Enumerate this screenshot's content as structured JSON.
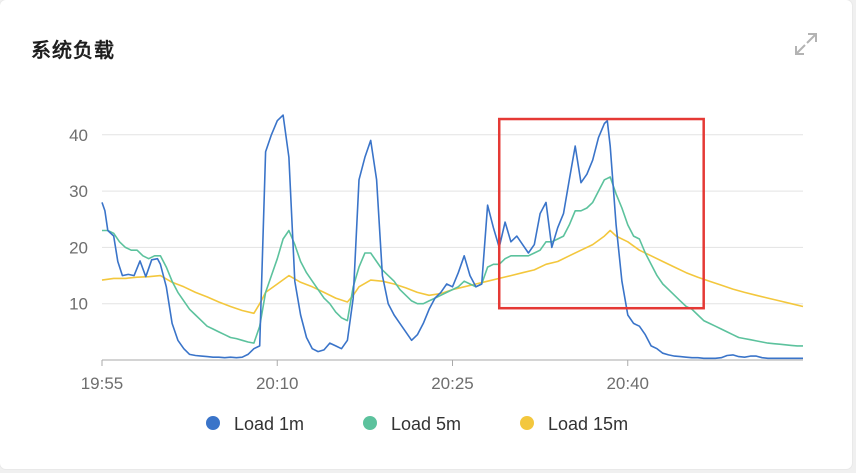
{
  "panel": {
    "title": "系统负载",
    "expand_icon": "expand-arrows-icon"
  },
  "chart_data": {
    "type": "line",
    "title": "系统负载",
    "xlabel": "",
    "ylabel": "",
    "x_ticks": [
      "19:55",
      "20:10",
      "20:25",
      "20:40"
    ],
    "y_ticks": [
      10,
      20,
      30,
      40
    ],
    "xlim": [
      "19:55",
      "21:55"
    ],
    "ylim": [
      0,
      44
    ],
    "grid": true,
    "legend_position": "bottom",
    "x_unit": "minutes since 19:55",
    "series": [
      {
        "name": "Load 1m",
        "color": "#3a74c9",
        "points": [
          [
            0,
            28
          ],
          [
            0.5,
            26.5
          ],
          [
            1,
            23
          ],
          [
            2,
            22
          ],
          [
            2.7,
            17.5
          ],
          [
            3.5,
            15
          ],
          [
            4.5,
            15.2
          ],
          [
            5.5,
            15
          ],
          [
            6.5,
            17.6
          ],
          [
            7.5,
            14.8
          ],
          [
            8.5,
            17.8
          ],
          [
            9.5,
            18
          ],
          [
            10,
            17
          ],
          [
            11,
            13
          ],
          [
            12,
            6.5
          ],
          [
            13,
            3.5
          ],
          [
            14,
            2
          ],
          [
            15,
            1
          ],
          [
            16,
            0.8
          ],
          [
            17,
            0.7
          ],
          [
            18,
            0.6
          ],
          [
            19,
            0.5
          ],
          [
            20,
            0.5
          ],
          [
            21,
            0.4
          ],
          [
            22,
            0.5
          ],
          [
            23,
            0.4
          ],
          [
            24,
            0.5
          ],
          [
            25,
            1
          ],
          [
            26,
            2
          ],
          [
            27,
            2.5
          ],
          [
            28,
            37
          ],
          [
            29,
            40
          ],
          [
            30,
            42.5
          ],
          [
            31,
            43.5
          ],
          [
            32,
            36
          ],
          [
            33,
            14
          ],
          [
            34,
            8
          ],
          [
            35,
            4
          ],
          [
            36,
            2
          ],
          [
            37,
            1.5
          ],
          [
            38,
            1.8
          ],
          [
            39,
            3
          ],
          [
            40,
            2.5
          ],
          [
            41,
            2
          ],
          [
            42,
            3.5
          ],
          [
            43,
            11
          ],
          [
            44,
            32
          ],
          [
            45,
            36
          ],
          [
            46,
            39
          ],
          [
            47,
            32
          ],
          [
            48,
            15
          ],
          [
            49,
            10
          ],
          [
            50,
            8
          ],
          [
            51,
            6.5
          ],
          [
            52,
            5
          ],
          [
            53,
            3.5
          ],
          [
            54,
            4.5
          ],
          [
            55,
            6.5
          ],
          [
            56,
            9
          ],
          [
            57,
            11
          ],
          [
            58,
            12
          ],
          [
            59,
            13.5
          ],
          [
            60,
            13
          ],
          [
            61,
            15.5
          ],
          [
            62,
            18.5
          ],
          [
            63,
            15
          ],
          [
            64,
            13
          ],
          [
            65,
            13.5
          ],
          [
            66,
            27.5
          ],
          [
            67,
            23.5
          ],
          [
            68,
            20
          ],
          [
            69,
            24.5
          ],
          [
            70,
            21
          ],
          [
            71,
            22
          ],
          [
            72,
            20.5
          ],
          [
            73,
            19
          ],
          [
            74,
            20.5
          ],
          [
            75,
            26
          ],
          [
            76,
            28
          ],
          [
            77,
            20
          ],
          [
            78,
            23.5
          ],
          [
            79,
            26
          ],
          [
            80,
            32
          ],
          [
            81,
            38
          ],
          [
            82,
            31.5
          ],
          [
            83,
            33
          ],
          [
            84,
            35.5
          ],
          [
            85,
            39.5
          ],
          [
            86,
            42
          ],
          [
            86.5,
            42.5
          ],
          [
            87,
            38
          ],
          [
            88,
            24
          ],
          [
            89,
            14
          ],
          [
            90,
            8
          ],
          [
            91,
            6.5
          ],
          [
            92,
            6
          ],
          [
            93,
            4.5
          ],
          [
            94,
            2.5
          ],
          [
            95,
            2
          ],
          [
            96,
            1.2
          ],
          [
            97,
            0.9
          ],
          [
            98,
            0.7
          ],
          [
            99,
            0.6
          ],
          [
            100,
            0.5
          ],
          [
            101,
            0.4
          ],
          [
            102,
            0.4
          ],
          [
            103,
            0.3
          ],
          [
            104,
            0.3
          ],
          [
            105,
            0.3
          ],
          [
            106,
            0.4
          ],
          [
            107,
            0.8
          ],
          [
            108,
            0.9
          ],
          [
            109,
            0.6
          ],
          [
            110,
            0.5
          ],
          [
            111,
            0.7
          ],
          [
            112,
            0.7
          ],
          [
            113,
            0.4
          ],
          [
            114,
            0.3
          ],
          [
            115,
            0.3
          ],
          [
            116,
            0.3
          ],
          [
            117,
            0.3
          ],
          [
            118,
            0.3
          ],
          [
            119,
            0.3
          ],
          [
            120,
            0.3
          ]
        ]
      },
      {
        "name": "Load 5m",
        "color": "#5cc29d",
        "points": [
          [
            0,
            23
          ],
          [
            1,
            23
          ],
          [
            2,
            22.5
          ],
          [
            3,
            21
          ],
          [
            4,
            20
          ],
          [
            5,
            19.5
          ],
          [
            6,
            19.5
          ],
          [
            7,
            18.5
          ],
          [
            8,
            18
          ],
          [
            9,
            18.5
          ],
          [
            10,
            18.5
          ],
          [
            11,
            16.5
          ],
          [
            12,
            14
          ],
          [
            13,
            12
          ],
          [
            14,
            10.5
          ],
          [
            15,
            9
          ],
          [
            16,
            8
          ],
          [
            17,
            7
          ],
          [
            18,
            6
          ],
          [
            19,
            5.5
          ],
          [
            20,
            5
          ],
          [
            21,
            4.5
          ],
          [
            22,
            4
          ],
          [
            23,
            3.8
          ],
          [
            24,
            3.5
          ],
          [
            25,
            3.2
          ],
          [
            26,
            3
          ],
          [
            27,
            6
          ],
          [
            28,
            12
          ],
          [
            29,
            15
          ],
          [
            30,
            18
          ],
          [
            31,
            21.5
          ],
          [
            32,
            23
          ],
          [
            33,
            20.5
          ],
          [
            34,
            17.5
          ],
          [
            35,
            15.5
          ],
          [
            36,
            14
          ],
          [
            37,
            12.5
          ],
          [
            38,
            11
          ],
          [
            39,
            10
          ],
          [
            40,
            8.5
          ],
          [
            41,
            7.5
          ],
          [
            42,
            7
          ],
          [
            43,
            13
          ],
          [
            44,
            16.5
          ],
          [
            45,
            19
          ],
          [
            46,
            19
          ],
          [
            47,
            17.5
          ],
          [
            48,
            16
          ],
          [
            49,
            15
          ],
          [
            50,
            14
          ],
          [
            51,
            12.5
          ],
          [
            52,
            11.5
          ],
          [
            53,
            10.5
          ],
          [
            54,
            10
          ],
          [
            55,
            10
          ],
          [
            56,
            10.5
          ],
          [
            57,
            11
          ],
          [
            58,
            11.5
          ],
          [
            59,
            12
          ],
          [
            60,
            12.5
          ],
          [
            61,
            13
          ],
          [
            62,
            14
          ],
          [
            63,
            13.5
          ],
          [
            64,
            13
          ],
          [
            65,
            13.5
          ],
          [
            66,
            16.5
          ],
          [
            67,
            17
          ],
          [
            68,
            17
          ],
          [
            69,
            18
          ],
          [
            70,
            18.5
          ],
          [
            71,
            18.5
          ],
          [
            72,
            18.5
          ],
          [
            73,
            18.5
          ],
          [
            74,
            19
          ],
          [
            75,
            19.5
          ],
          [
            76,
            21
          ],
          [
            77,
            21
          ],
          [
            78,
            21.5
          ],
          [
            79,
            22
          ],
          [
            80,
            24
          ],
          [
            81,
            26.5
          ],
          [
            82,
            26.5
          ],
          [
            83,
            27
          ],
          [
            84,
            28
          ],
          [
            85,
            30
          ],
          [
            86,
            32
          ],
          [
            87,
            32.5
          ],
          [
            88,
            29.5
          ],
          [
            89,
            27
          ],
          [
            90,
            24
          ],
          [
            91,
            22
          ],
          [
            92,
            21.5
          ],
          [
            93,
            19
          ],
          [
            94,
            17
          ],
          [
            95,
            15
          ],
          [
            96,
            13.5
          ],
          [
            97,
            12.5
          ],
          [
            98,
            11.5
          ],
          [
            99,
            10.5
          ],
          [
            100,
            9.5
          ],
          [
            101,
            9
          ],
          [
            102,
            8
          ],
          [
            103,
            7
          ],
          [
            104,
            6.5
          ],
          [
            105,
            6
          ],
          [
            106,
            5.5
          ],
          [
            107,
            5
          ],
          [
            108,
            4.5
          ],
          [
            109,
            4
          ],
          [
            110,
            3.8
          ],
          [
            111,
            3.6
          ],
          [
            112,
            3.4
          ],
          [
            113,
            3.2
          ],
          [
            114,
            3
          ],
          [
            115,
            2.9
          ],
          [
            116,
            2.8
          ],
          [
            117,
            2.7
          ],
          [
            118,
            2.6
          ],
          [
            119,
            2.5
          ],
          [
            120,
            2.5
          ]
        ]
      },
      {
        "name": "Load 15m",
        "color": "#f3c73d",
        "points": [
          [
            0,
            14.2
          ],
          [
            2,
            14.5
          ],
          [
            4,
            14.5
          ],
          [
            6,
            14.7
          ],
          [
            8,
            14.8
          ],
          [
            10,
            15
          ],
          [
            12,
            13.8
          ],
          [
            14,
            13
          ],
          [
            16,
            12
          ],
          [
            18,
            11.2
          ],
          [
            20,
            10.3
          ],
          [
            22,
            9.5
          ],
          [
            24,
            8.8
          ],
          [
            26,
            8.3
          ],
          [
            27,
            10
          ],
          [
            28,
            12
          ],
          [
            30,
            13.5
          ],
          [
            32,
            15
          ],
          [
            34,
            13.8
          ],
          [
            36,
            13
          ],
          [
            38,
            12
          ],
          [
            40,
            11
          ],
          [
            42,
            10.3
          ],
          [
            43,
            11.5
          ],
          [
            44,
            13
          ],
          [
            46,
            14.2
          ],
          [
            48,
            14
          ],
          [
            50,
            13.5
          ],
          [
            52,
            12.8
          ],
          [
            54,
            12
          ],
          [
            56,
            11.5
          ],
          [
            58,
            11.8
          ],
          [
            60,
            12.5
          ],
          [
            62,
            13
          ],
          [
            64,
            13.5
          ],
          [
            66,
            14
          ],
          [
            68,
            14.5
          ],
          [
            70,
            15
          ],
          [
            72,
            15.5
          ],
          [
            74,
            16
          ],
          [
            76,
            17
          ],
          [
            78,
            17.5
          ],
          [
            80,
            18.5
          ],
          [
            82,
            19.5
          ],
          [
            84,
            20.5
          ],
          [
            86,
            22
          ],
          [
            87,
            23
          ],
          [
            88,
            22
          ],
          [
            90,
            21
          ],
          [
            92,
            19.5
          ],
          [
            94,
            18.5
          ],
          [
            96,
            17.5
          ],
          [
            98,
            16.5
          ],
          [
            100,
            15.5
          ],
          [
            102,
            14.7
          ],
          [
            104,
            14
          ],
          [
            106,
            13.3
          ],
          [
            108,
            12.6
          ],
          [
            110,
            12
          ],
          [
            112,
            11.5
          ],
          [
            114,
            11
          ],
          [
            116,
            10.5
          ],
          [
            118,
            10
          ],
          [
            120,
            9.5
          ]
        ]
      }
    ],
    "highlight_box": {
      "x": [
        68,
        103
      ],
      "y": [
        9.2,
        42.8
      ],
      "color": "#e53935"
    }
  }
}
